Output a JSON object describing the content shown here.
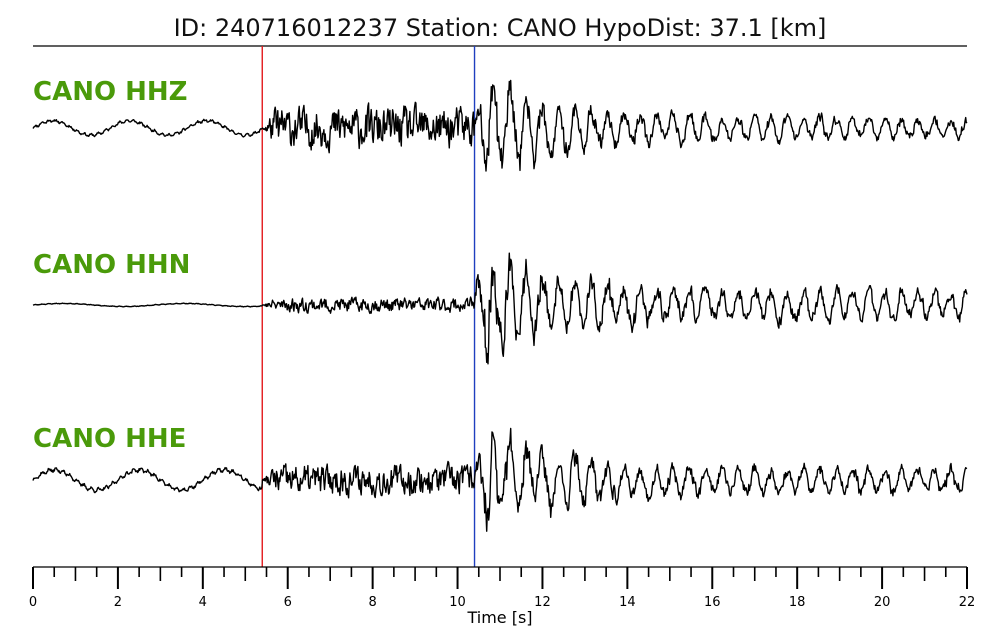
{
  "header": {
    "title": "ID: 240716012237   Station: CANO   HypoDist:    37.1 [km]"
  },
  "colors": {
    "trace_label": "#4a9a0a",
    "p_pick": "#e31a1c",
    "s_pick": "#1f3fbf",
    "trace": "#000000"
  },
  "chart_data": {
    "type": "line",
    "title": "ID: 240716012237   Station: CANO   HypoDist:    37.1 [km]",
    "xlabel": "Time [s]",
    "xlim": [
      0,
      22
    ],
    "x_ticks": [
      0,
      2,
      4,
      6,
      8,
      10,
      12,
      14,
      16,
      18,
      20,
      22
    ],
    "x_minor_tick_step": 0.5,
    "grid": false,
    "legend": "none",
    "picks": [
      {
        "type": "P",
        "time": 5.4,
        "color": "#e31a1c"
      },
      {
        "type": "S",
        "time": 10.4,
        "color": "#1f3fbf"
      }
    ],
    "series": [
      {
        "name": "CANO HHZ",
        "pre_event_amplitude": 0.1,
        "p_coda_amplitude": 0.3,
        "peak_amplitude": 1.0,
        "late_coda_amplitude": 0.22
      },
      {
        "name": "CANO HHN",
        "pre_event_amplitude": 0.02,
        "p_coda_amplitude": 0.1,
        "peak_amplitude": 1.0,
        "late_coda_amplitude": 0.28
      },
      {
        "name": "CANO HHE",
        "pre_event_amplitude": 0.14,
        "p_coda_amplitude": 0.22,
        "peak_amplitude": 1.0,
        "late_coda_amplitude": 0.25
      }
    ]
  }
}
